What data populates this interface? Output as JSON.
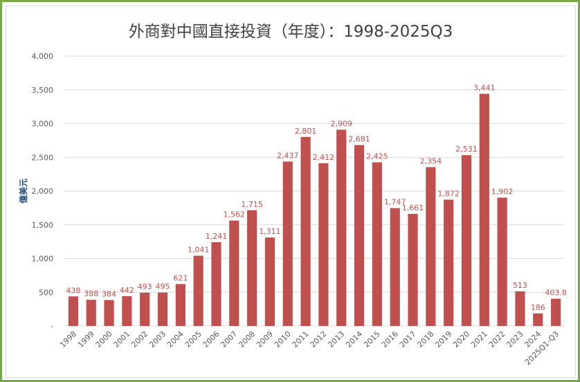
{
  "chart_data": {
    "type": "bar",
    "title": "外商對中國直接投資（年度）：1998-2025Q3",
    "ylabel": "億美元",
    "xlabel": "",
    "ylim": [
      0,
      4000
    ],
    "yticks": [
      0,
      500,
      1000,
      1500,
      2000,
      2500,
      3000,
      3500,
      4000
    ],
    "ytick_labels": [
      "-",
      "500",
      "1,000",
      "1,500",
      "2,000",
      "2,500",
      "3,000",
      "3,500",
      "4,000"
    ],
    "grid": true,
    "legend": "none",
    "bar_color": "#c0504d",
    "label_color": "#c0504d",
    "categories": [
      "1998",
      "1999",
      "2000",
      "2001",
      "2002",
      "2003",
      "2004",
      "2005",
      "2006",
      "2007",
      "2008",
      "2009",
      "2010",
      "2011",
      "2012",
      "2013",
      "2014",
      "2015",
      "2016",
      "2017",
      "2018",
      "2019",
      "2020",
      "2021",
      "2022",
      "2023",
      "2024",
      "2025Q1-Q3"
    ],
    "values": [
      438,
      388,
      384,
      442,
      493,
      495,
      621,
      1041,
      1241,
      1562,
      1715,
      1311,
      2437,
      2801,
      2412,
      2909,
      2681,
      2425,
      1747,
      1661,
      2354,
      1872,
      2531,
      3441,
      1902,
      513,
      186,
      403.8
    ],
    "data_labels": [
      "438",
      "388",
      "384",
      "442",
      "493",
      "495",
      "621",
      "1,041",
      "1,241",
      "1,562",
      "1,715",
      "1,311",
      "2,437",
      "2,801",
      "2,412",
      "2,909",
      "2,681",
      "2,425",
      "1,747",
      "1,661",
      "2,354",
      "1,872",
      "2,531",
      "3,441",
      "1,902",
      "513",
      "186",
      "403.8"
    ]
  }
}
